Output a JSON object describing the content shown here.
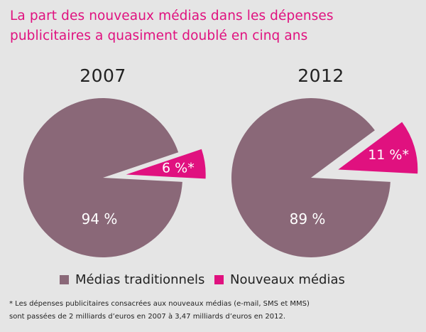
{
  "title": {
    "line1": "La part des nouveaux médias dans les dépenses",
    "line2": "publicitaires a quasiment doublé en cinq ans"
  },
  "colors": {
    "traditional": "#8a6878",
    "new": "#e0117f",
    "title": "#e0117f"
  },
  "legend": [
    {
      "label": "Médias traditionnels",
      "color": "#8a6878"
    },
    {
      "label": "Nouveaux médias",
      "color": "#e0117f"
    }
  ],
  "footnote": {
    "line1": "* Les dépenses publicitaires consacrées aux nouveaux médias (e-mail, SMS et MMS)",
    "line2": "sont passées de 2 milliards d’euros en 2007 à 3,47 milliards d’euros en 2012."
  },
  "chart_data": [
    {
      "type": "pie",
      "title": "2007",
      "slices": [
        {
          "label": "Médias traditionnels",
          "value": 94,
          "text": "94 %"
        },
        {
          "label": "Nouveaux médias",
          "value": 6,
          "text": "6 %*"
        }
      ]
    },
    {
      "type": "pie",
      "title": "2012",
      "slices": [
        {
          "label": "Médias traditionnels",
          "value": 89,
          "text": "89 %"
        },
        {
          "label": "Nouveaux médias",
          "value": 11,
          "text": "11 %*"
        }
      ]
    }
  ]
}
